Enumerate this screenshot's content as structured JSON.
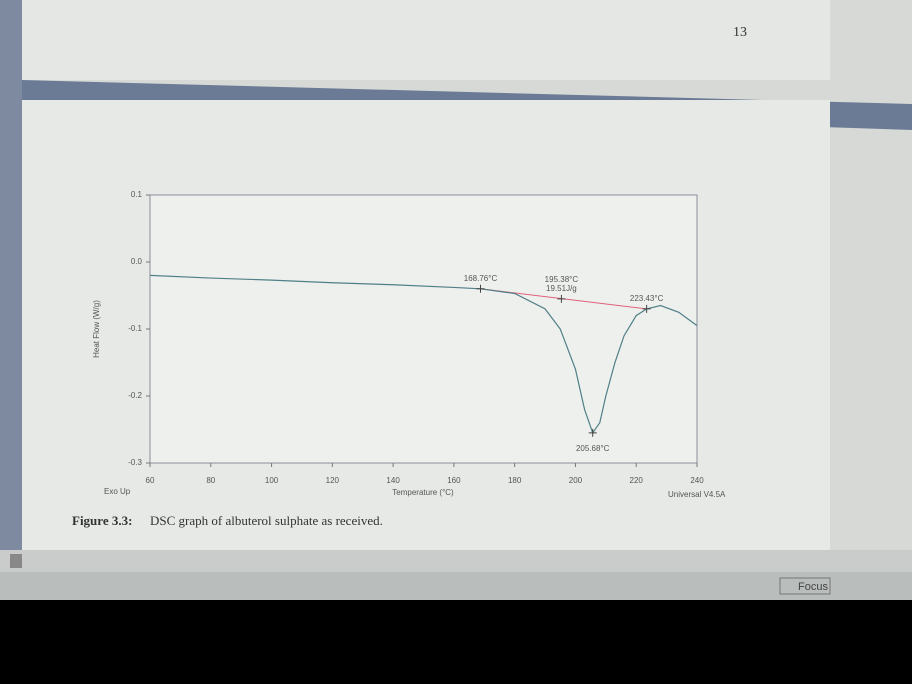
{
  "page_number": "13",
  "chart_data": {
    "type": "line",
    "ylabel": "Heat Flow (W/g)",
    "xlabel": "Temperature (°C)",
    "corner_left": "Exo Up",
    "corner_right": "Universal V4.5A",
    "x": [
      60,
      80,
      100,
      120,
      140,
      160,
      168.76,
      180,
      190,
      195,
      200,
      203,
      205.68,
      208,
      210,
      213,
      216,
      220,
      223.43,
      228,
      234,
      240
    ],
    "values": [
      -0.02,
      -0.024,
      -0.027,
      -0.031,
      -0.034,
      -0.038,
      -0.04,
      -0.047,
      -0.07,
      -0.1,
      -0.16,
      -0.22,
      -0.255,
      -0.24,
      -0.2,
      -0.15,
      -0.11,
      -0.08,
      -0.07,
      -0.065,
      -0.075,
      -0.095
    ],
    "color": "#4f7f86",
    "baseline": {
      "x": [
        168.76,
        223.43
      ],
      "values": [
        -0.04,
        -0.07
      ],
      "color": "#e0607a"
    },
    "xlim": [
      60,
      240
    ],
    "xticks": [
      60,
      80,
      100,
      120,
      140,
      160,
      180,
      200,
      220,
      240
    ],
    "ylim": [
      -0.3,
      0.1
    ],
    "yticks": [
      0.1,
      {
        "value": 0,
        "label": "0.0"
      },
      -0.1,
      -0.2,
      -0.3
    ],
    "annotations": [
      {
        "lines": [
          "168.76°C"
        ],
        "x": 168.76,
        "y": -0.04
      },
      {
        "lines": [
          "195.38°C",
          "19.51J/g"
        ],
        "x": 195.38,
        "y": -0.055
      },
      {
        "lines": [
          "223.43°C"
        ],
        "x": 223.43,
        "y": -0.07
      },
      {
        "lines": [
          "205.68°C"
        ],
        "x": 205.68,
        "y": -0.255
      }
    ]
  },
  "caption": {
    "label": "Figure 3.3:",
    "text": "DSC graph of albuterol sulphate as received."
  },
  "status": {
    "focus": "Focus"
  }
}
